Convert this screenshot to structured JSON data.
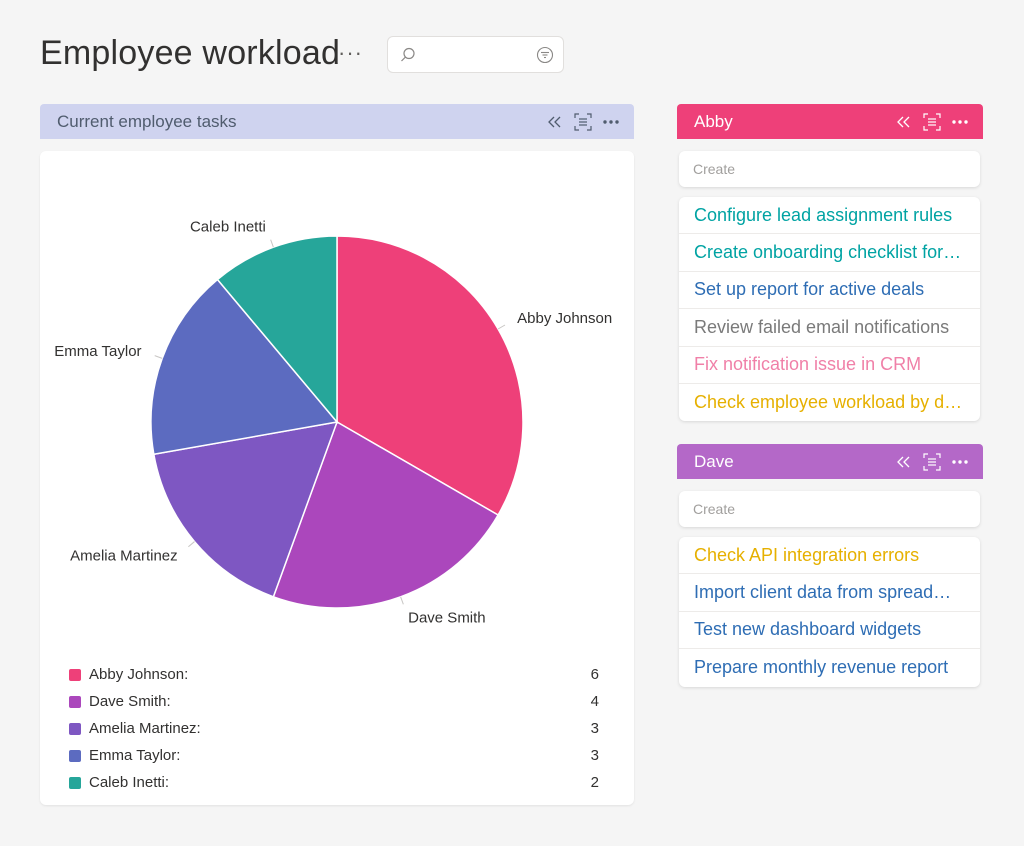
{
  "page": {
    "title": "Employee workload",
    "more_label": "···"
  },
  "search": {
    "value": "",
    "placeholder": ""
  },
  "chart_panel": {
    "title": "Current employee tasks"
  },
  "chart_data": {
    "type": "pie",
    "categories": [
      "Abby Johnson",
      "Dave Smith",
      "Amelia Martinez",
      "Emma Taylor",
      "Caleb Inetti"
    ],
    "values": [
      6,
      4,
      3,
      3,
      2
    ],
    "colors": [
      "#ee4079",
      "#ab47bc",
      "#7e57c2",
      "#5c6bc0",
      "#26a69a"
    ],
    "legend_labels": [
      "Abby Johnson:",
      "Dave Smith:",
      "Amelia Martinez:",
      "Emma Taylor:",
      "Caleb Inetti:"
    ],
    "legend_position": "bottom"
  },
  "abby": {
    "name": "Abby",
    "create_placeholder": "Create",
    "tasks": [
      {
        "label": "Configure lead assignment rules",
        "color": "#00a3a3"
      },
      {
        "label": "Create onboarding checklist for…",
        "color": "#00a3a3"
      },
      {
        "label": "Set up report for active deals",
        "color": "#2e6db4"
      },
      {
        "label": "Review failed email notifications",
        "color": "#7a7a7a"
      },
      {
        "label": "Fix notification issue in CRM",
        "color": "#f080a8"
      },
      {
        "label": "Check employee workload by d…",
        "color": "#e6b000"
      }
    ]
  },
  "dave": {
    "name": "Dave",
    "create_placeholder": "Create",
    "tasks": [
      {
        "label": "Check API integration errors",
        "color": "#e6b000"
      },
      {
        "label": "Import client data from spread…",
        "color": "#2e6db4"
      },
      {
        "label": "Test new dashboard widgets",
        "color": "#2e6db4"
      },
      {
        "label": "Prepare monthly revenue report",
        "color": "#2e6db4"
      }
    ]
  }
}
